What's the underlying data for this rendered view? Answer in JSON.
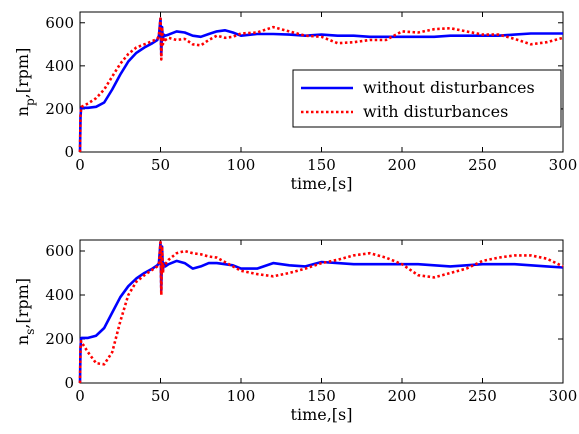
{
  "chart_data": [
    {
      "type": "line",
      "xlabel": "time,[s]",
      "ylabel_main": "n",
      "ylabel_sub": "p",
      "ylabel_unit": ",[rpm]",
      "xlim": [
        0,
        300
      ],
      "ylim": [
        0,
        650
      ],
      "xticks": [
        "0",
        "50",
        "100",
        "150",
        "200",
        "250",
        "300"
      ],
      "yticks": [
        "0",
        "200",
        "400",
        "600"
      ],
      "grid": false,
      "legend": {
        "placement": "right",
        "entries": [
          "without disturbances",
          "with disturbances"
        ]
      },
      "series": [
        {
          "name": "without disturbances",
          "color": "#0000ff",
          "style": "solid",
          "x": [
            0,
            0.3,
            0.6,
            1,
            5,
            10,
            15,
            20,
            25,
            30,
            35,
            40,
            45,
            48,
            49,
            50,
            50.5,
            51,
            51.5,
            52,
            53,
            55,
            60,
            65,
            70,
            75,
            80,
            85,
            90,
            95,
            100,
            110,
            120,
            130,
            140,
            150,
            160,
            170,
            180,
            190,
            200,
            210,
            220,
            230,
            240,
            250,
            260,
            270,
            280,
            290,
            300
          ],
          "y": [
            0,
            160,
            200,
            205,
            205,
            210,
            230,
            290,
            360,
            420,
            460,
            485,
            505,
            520,
            540,
            620,
            450,
            580,
            520,
            545,
            540,
            545,
            560,
            555,
            540,
            535,
            548,
            560,
            565,
            555,
            540,
            548,
            548,
            545,
            540,
            545,
            540,
            540,
            535,
            535,
            535,
            535,
            535,
            540,
            540,
            540,
            540,
            545,
            550,
            550,
            550
          ]
        },
        {
          "name": "with disturbances",
          "color": "#ff0000",
          "style": "dotted",
          "x": [
            0,
            0.3,
            0.6,
            1,
            5,
            10,
            15,
            20,
            25,
            30,
            35,
            40,
            45,
            48,
            49,
            50,
            50.5,
            51,
            51.5,
            52,
            53,
            55,
            60,
            65,
            70,
            75,
            80,
            85,
            90,
            95,
            100,
            110,
            120,
            130,
            140,
            150,
            160,
            170,
            180,
            190,
            200,
            210,
            220,
            230,
            240,
            250,
            260,
            270,
            280,
            290,
            300
          ],
          "y": [
            0,
            170,
            200,
            210,
            225,
            250,
            290,
            350,
            410,
            455,
            485,
            500,
            515,
            525,
            540,
            620,
            430,
            580,
            500,
            530,
            520,
            530,
            520,
            525,
            500,
            495,
            520,
            540,
            530,
            535,
            550,
            555,
            580,
            560,
            540,
            535,
            505,
            510,
            520,
            520,
            560,
            555,
            570,
            575,
            560,
            545,
            545,
            525,
            500,
            510,
            530
          ]
        }
      ]
    },
    {
      "type": "line",
      "xlabel": "time,[s]",
      "ylabel_main": "n",
      "ylabel_sub": "s",
      "ylabel_unit": ",[rpm]",
      "xlim": [
        0,
        300
      ],
      "ylim": [
        0,
        650
      ],
      "xticks": [
        "0",
        "50",
        "100",
        "150",
        "200",
        "250",
        "300"
      ],
      "yticks": [
        "0",
        "200",
        "400",
        "600"
      ],
      "grid": false,
      "series": [
        {
          "name": "without disturbances",
          "color": "#0000ff",
          "style": "solid",
          "x": [
            0,
            0.3,
            0.6,
            1,
            5,
            10,
            15,
            20,
            25,
            30,
            35,
            40,
            45,
            48,
            49,
            50,
            50.5,
            51,
            51.5,
            52,
            53,
            55,
            60,
            65,
            70,
            75,
            80,
            85,
            90,
            95,
            100,
            110,
            120,
            130,
            140,
            150,
            160,
            170,
            180,
            190,
            200,
            210,
            220,
            230,
            240,
            250,
            260,
            270,
            280,
            290,
            300
          ],
          "y": [
            0,
            160,
            200,
            205,
            205,
            215,
            250,
            320,
            390,
            440,
            475,
            500,
            520,
            535,
            545,
            640,
            420,
            620,
            510,
            545,
            530,
            540,
            555,
            545,
            520,
            530,
            545,
            545,
            540,
            535,
            520,
            520,
            545,
            535,
            530,
            550,
            545,
            540,
            540,
            540,
            540,
            540,
            535,
            530,
            535,
            540,
            540,
            540,
            535,
            530,
            525
          ]
        },
        {
          "name": "with disturbances",
          "color": "#ff0000",
          "style": "dotted",
          "x": [
            0,
            0.3,
            0.6,
            1,
            5,
            10,
            15,
            20,
            25,
            30,
            35,
            40,
            45,
            48,
            49,
            50,
            50.5,
            51,
            51.5,
            52,
            53,
            55,
            60,
            65,
            70,
            75,
            80,
            85,
            90,
            95,
            100,
            110,
            120,
            130,
            140,
            150,
            160,
            170,
            180,
            190,
            200,
            210,
            220,
            230,
            240,
            250,
            260,
            270,
            280,
            290,
            300
          ],
          "y": [
            0,
            160,
            190,
            185,
            140,
            90,
            85,
            140,
            280,
            400,
            460,
            490,
            515,
            530,
            540,
            640,
            400,
            620,
            500,
            540,
            540,
            560,
            590,
            600,
            590,
            585,
            575,
            570,
            550,
            530,
            510,
            495,
            485,
            500,
            520,
            545,
            560,
            580,
            590,
            570,
            540,
            490,
            480,
            500,
            520,
            555,
            570,
            580,
            580,
            565,
            530
          ]
        }
      ]
    }
  ]
}
